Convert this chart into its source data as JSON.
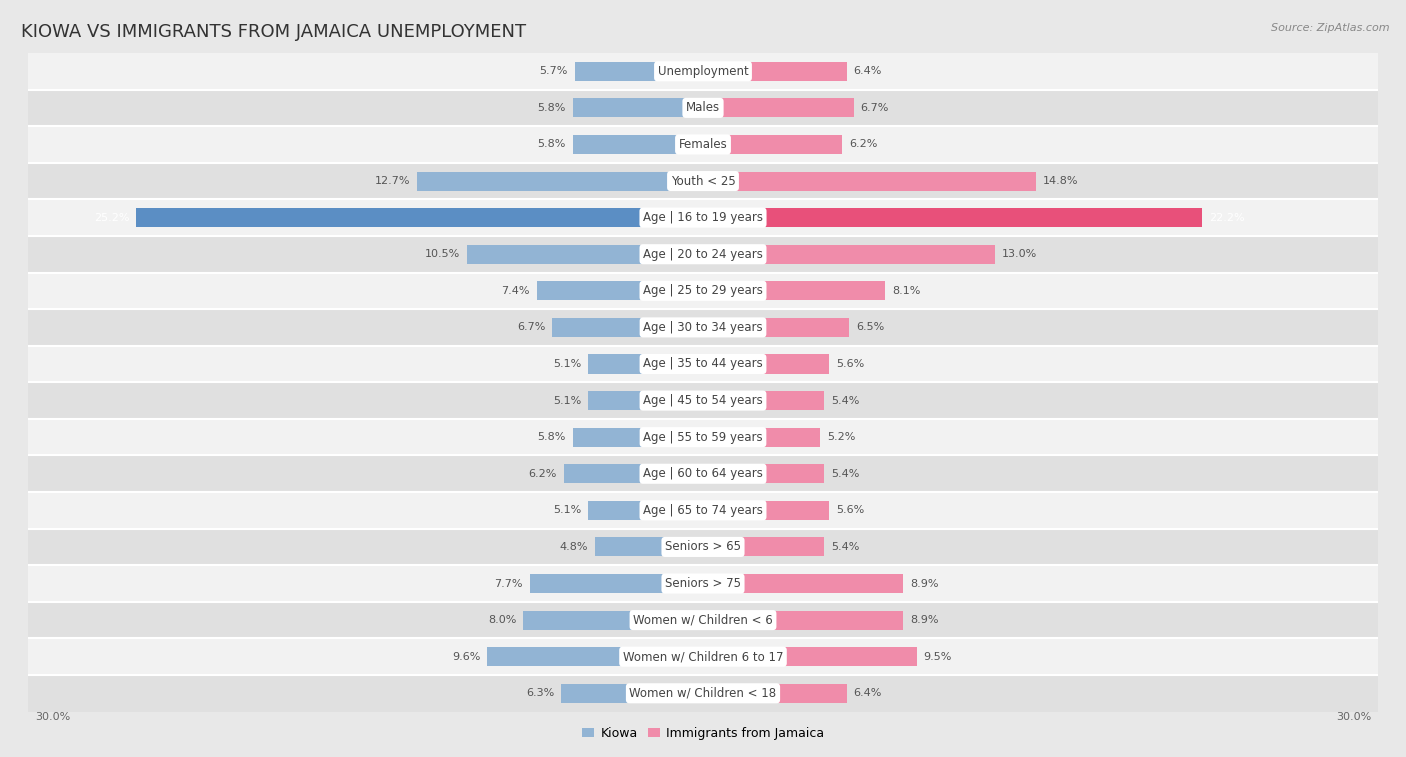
{
  "title": "KIOWA VS IMMIGRANTS FROM JAMAICA UNEMPLOYMENT",
  "source": "Source: ZipAtlas.com",
  "categories": [
    "Unemployment",
    "Males",
    "Females",
    "Youth < 25",
    "Age | 16 to 19 years",
    "Age | 20 to 24 years",
    "Age | 25 to 29 years",
    "Age | 30 to 34 years",
    "Age | 35 to 44 years",
    "Age | 45 to 54 years",
    "Age | 55 to 59 years",
    "Age | 60 to 64 years",
    "Age | 65 to 74 years",
    "Seniors > 65",
    "Seniors > 75",
    "Women w/ Children < 6",
    "Women w/ Children 6 to 17",
    "Women w/ Children < 18"
  ],
  "kiowa_values": [
    5.7,
    5.8,
    5.8,
    12.7,
    25.2,
    10.5,
    7.4,
    6.7,
    5.1,
    5.1,
    5.8,
    6.2,
    5.1,
    4.8,
    7.7,
    8.0,
    9.6,
    6.3
  ],
  "jamaica_values": [
    6.4,
    6.7,
    6.2,
    14.8,
    22.2,
    13.0,
    8.1,
    6.5,
    5.6,
    5.4,
    5.2,
    5.4,
    5.6,
    5.4,
    8.9,
    8.9,
    9.5,
    6.4
  ],
  "kiowa_color": "#92b4d4",
  "jamaica_color": "#f08caa",
  "kiowa_highlight_color": "#5b8ec4",
  "jamaica_highlight_color": "#e8507a",
  "kiowa_label": "Kiowa",
  "jamaica_label": "Immigrants from Jamaica",
  "axis_max": 30.0,
  "background_color": "#e8e8e8",
  "row_bg_light": "#f2f2f2",
  "row_bg_dark": "#e0e0e0",
  "title_fontsize": 13,
  "label_fontsize": 8.5,
  "value_fontsize": 8,
  "legend_fontsize": 9,
  "axis_label_fontsize": 8
}
